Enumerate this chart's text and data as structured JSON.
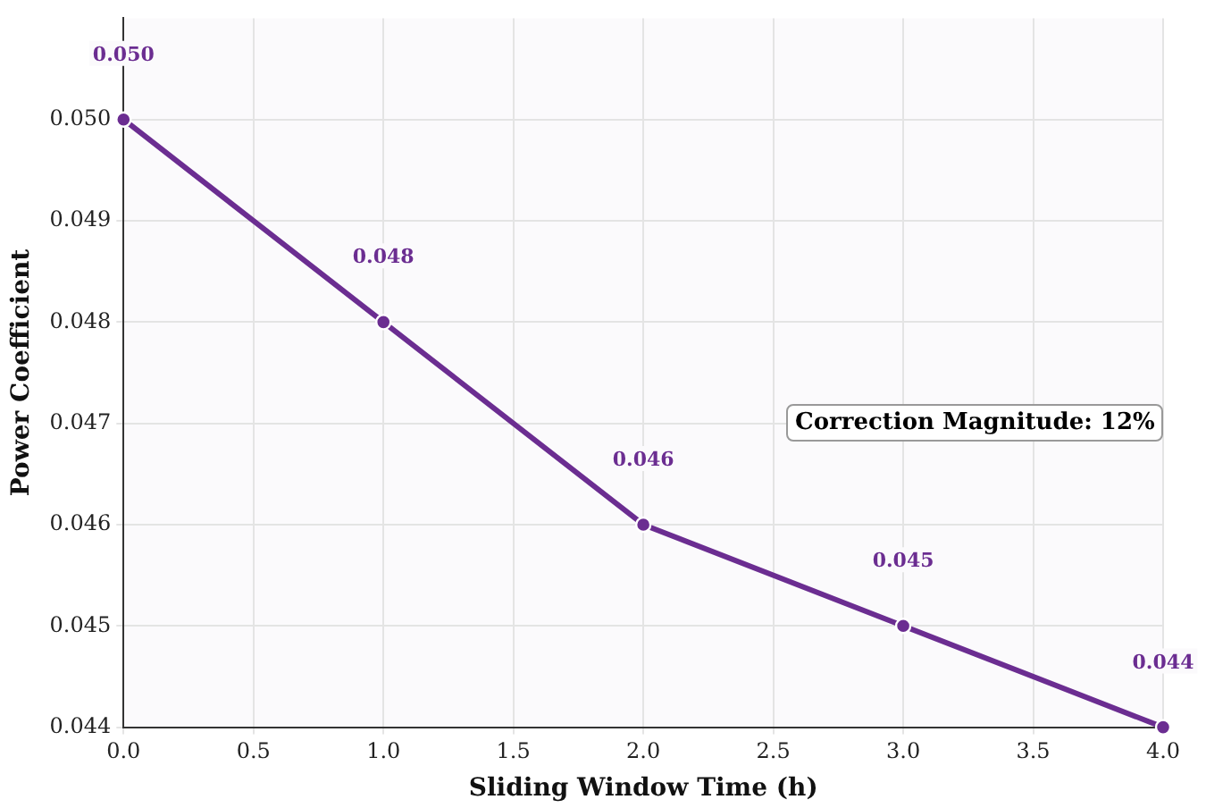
{
  "chart_data": {
    "type": "line",
    "xlabel": "Sliding Window Time (h)",
    "ylabel": "Power Coefficient",
    "x": [
      0,
      1,
      2,
      3,
      4
    ],
    "series": [
      {
        "color": "#6b2d91",
        "values": [
          0.05,
          0.048,
          0.046,
          0.045,
          0.044
        ],
        "value_labels": [
          "0.050",
          "0.048",
          "0.046",
          "0.045",
          "0.044"
        ]
      }
    ],
    "xlim": [
      0,
      4
    ],
    "ylim": [
      0.044,
      0.051
    ],
    "xticks": [
      {
        "value": 0,
        "label": "0.0"
      },
      {
        "value": 0.5,
        "label": "0.5"
      },
      {
        "value": 1,
        "label": "1.0"
      },
      {
        "value": 1.5,
        "label": "1.5"
      },
      {
        "value": 2,
        "label": "2.0"
      },
      {
        "value": 2.5,
        "label": "2.5"
      },
      {
        "value": 3,
        "label": "3.0"
      },
      {
        "value": 3.5,
        "label": "3.5"
      },
      {
        "value": 4,
        "label": "4.0"
      }
    ],
    "yticks": [
      {
        "value": 0.044,
        "label": "0.044"
      },
      {
        "value": 0.045,
        "label": "0.045"
      },
      {
        "value": 0.046,
        "label": "0.046"
      },
      {
        "value": 0.047,
        "label": "0.047"
      },
      {
        "value": 0.048,
        "label": "0.048"
      },
      {
        "value": 0.049,
        "label": "0.049"
      },
      {
        "value": 0.05,
        "label": "0.050"
      }
    ],
    "grid": true,
    "marker": "circle",
    "line_style": "solid",
    "legend": false,
    "annotations": [
      "Correction Magnitude: 12%"
    ]
  }
}
